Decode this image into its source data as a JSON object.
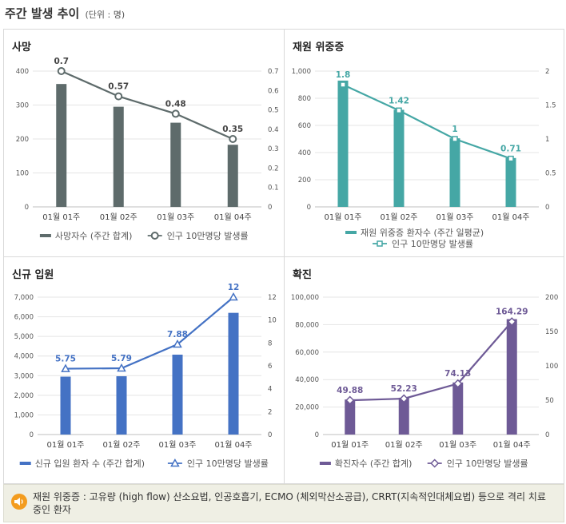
{
  "page": {
    "title": "주간 발생 추이",
    "unit": "(단위 : 명)"
  },
  "footer": {
    "note": "재원 위중증 : 고유량 (high flow) 산소요법, 인공호흡기, ECMO (체외막산소공급), CRRT(지속적인대체요법) 등으로 격리 치료 중인 환자"
  },
  "colors": {
    "deaths_bar": "#5e6b6b",
    "deaths_line": "#5e6b6b",
    "severe_bar": "#45a7a5",
    "severe_line": "#45a7a5",
    "admissions_bar": "#4472c4",
    "admissions_line": "#4472c4",
    "confirmed_bar": "#6e5a96",
    "confirmed_line": "#6e5a96"
  },
  "chart_data": [
    {
      "id": "deaths",
      "type": "bar",
      "title": "사망",
      "categories": [
        "01월 01주",
        "01월 02주",
        "01월 03주",
        "01월 04주"
      ],
      "series": [
        {
          "name": "사망자수 (주간 합계)",
          "kind": "bar",
          "axis": "left",
          "values": [
            362,
            295,
            248,
            183
          ]
        },
        {
          "name": "인구 10만명당 발생률",
          "kind": "line",
          "axis": "right",
          "marker": "circle",
          "values": [
            0.7,
            0.57,
            0.48,
            0.35
          ],
          "labels": [
            "0.7",
            "0.57",
            "0.48",
            "0.35"
          ]
        }
      ],
      "left_axis": {
        "ylim": [
          0,
          400
        ],
        "ticks": [
          "0",
          "100",
          "200",
          "300",
          "400"
        ]
      },
      "right_axis": {
        "ylim": [
          0,
          0.7
        ],
        "ticks": [
          "0",
          "0.1",
          "0.2",
          "0.3",
          "0.4",
          "0.5",
          "0.6",
          "0.7"
        ]
      },
      "legend": [
        "사망자수 (주간 합계)",
        "인구 10만명당 발생률"
      ]
    },
    {
      "id": "severe",
      "type": "bar",
      "title": "재원 위중증",
      "categories": [
        "01월 01주",
        "01월 02주",
        "01월 03주",
        "01월 04주"
      ],
      "series": [
        {
          "name": "재원 위중증 환자수 (주간 일평균)",
          "kind": "bar",
          "axis": "left",
          "values": [
            930,
            715,
            505,
            360
          ]
        },
        {
          "name": "인구 10만명당 발생률",
          "kind": "line",
          "axis": "right",
          "marker": "square",
          "values": [
            1.8,
            1.42,
            1.0,
            0.71
          ],
          "labels": [
            "1.8",
            "1.42",
            "1",
            "0.71"
          ]
        }
      ],
      "left_axis": {
        "ylim": [
          0,
          1000
        ],
        "ticks": [
          "0",
          "200",
          "400",
          "600",
          "800",
          "1,000"
        ]
      },
      "right_axis": {
        "ylim": [
          0,
          2
        ],
        "ticks": [
          "0",
          "0.5",
          "1",
          "1.5",
          "2"
        ]
      },
      "legend": [
        "재원 위중증 환자수 (주간 일평균)",
        "인구 10만명당 발생률"
      ]
    },
    {
      "id": "admissions",
      "type": "bar",
      "title": "신규 입원",
      "categories": [
        "01월 01주",
        "01월 02주",
        "01월 03주",
        "01월 04주"
      ],
      "series": [
        {
          "name": "신규 입원 환자 수 (주간 합계)",
          "kind": "bar",
          "axis": "left",
          "values": [
            2950,
            2970,
            4070,
            6200
          ]
        },
        {
          "name": "인구 10만명당 발생률",
          "kind": "line",
          "axis": "right",
          "marker": "triangle",
          "values": [
            5.75,
            5.79,
            7.88,
            12
          ],
          "labels": [
            "5.75",
            "5.79",
            "7.88",
            "12"
          ]
        }
      ],
      "left_axis": {
        "ylim": [
          0,
          7000
        ],
        "ticks": [
          "0",
          "1,000",
          "2,000",
          "3,000",
          "4,000",
          "5,000",
          "6,000",
          "7,000"
        ]
      },
      "right_axis": {
        "ylim": [
          0,
          12
        ],
        "ticks": [
          "0",
          "2",
          "4",
          "6",
          "8",
          "10",
          "12"
        ]
      },
      "legend": [
        "신규 입원 환자 수 (주간 합계)",
        "인구 10만명당 발생률"
      ]
    },
    {
      "id": "confirmed",
      "type": "bar",
      "title": "확진",
      "categories": [
        "01월 01주",
        "01월 02주",
        "01월 03주",
        "01월 04주"
      ],
      "series": [
        {
          "name": "확진자수 (주간 합계)",
          "kind": "bar",
          "axis": "left",
          "values": [
            25500,
            26800,
            37900,
            84000
          ]
        },
        {
          "name": "인구 10만명당 발생률",
          "kind": "line",
          "axis": "right",
          "marker": "diamond",
          "values": [
            49.88,
            52.23,
            74.13,
            164.29
          ],
          "labels": [
            "49.88",
            "52.23",
            "74.13",
            "164.29"
          ]
        }
      ],
      "left_axis": {
        "ylim": [
          0,
          100000
        ],
        "ticks": [
          "0",
          "20,000",
          "40,000",
          "60,000",
          "80,000",
          "100,000"
        ]
      },
      "right_axis": {
        "ylim": [
          0,
          200
        ],
        "ticks": [
          "0",
          "50",
          "100",
          "150",
          "200"
        ]
      },
      "legend": [
        "확진자수 (주간 합계)",
        "인구 10만명당 발생률"
      ]
    }
  ]
}
